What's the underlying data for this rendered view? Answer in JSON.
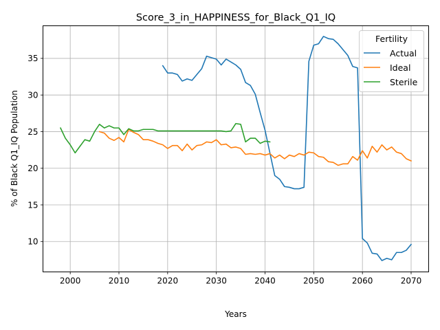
{
  "chart_data": {
    "type": "line",
    "title": "Score_3_in_HAPPINESS_for_Black_Q1_IQ",
    "xlabel": "Years",
    "ylabel": "% of Black Q1_IQ Population",
    "xlim": [
      1994.4,
      2073.6
    ],
    "ylim": [
      5.85,
      39.45
    ],
    "xticks": [
      2000,
      2010,
      2020,
      2030,
      2040,
      2050,
      2060,
      2070
    ],
    "yticks": [
      10,
      15,
      20,
      25,
      30,
      35
    ],
    "grid": true,
    "legend": {
      "title": "Fertility",
      "placement": "top-right",
      "entries": [
        "Actual",
        "Ideal",
        "Sterile"
      ]
    },
    "series": [
      {
        "name": "Actual",
        "color": "#1f77b4",
        "x": [
          2019,
          2020,
          2021,
          2022,
          2023,
          2024,
          2025,
          2026,
          2027,
          2028,
          2029,
          2030,
          2031,
          2032,
          2033,
          2034,
          2035,
          2036,
          2037,
          2038,
          2039,
          2040,
          2041,
          2042,
          2043,
          2044,
          2045,
          2046,
          2047,
          2048,
          2049,
          2050,
          2051,
          2052,
          2053,
          2054,
          2055,
          2056,
          2057,
          2058,
          2059,
          2060,
          2061,
          2062,
          2063,
          2064,
          2065,
          2066,
          2067,
          2068,
          2069,
          2070
        ],
        "y": [
          34.0,
          33.0,
          33.0,
          32.8,
          31.9,
          32.2,
          32.0,
          32.8,
          33.6,
          35.3,
          35.1,
          34.9,
          34.1,
          34.9,
          34.5,
          34.1,
          33.5,
          31.7,
          31.3,
          30.1,
          27.6,
          25.2,
          22.1,
          19.0,
          18.5,
          17.5,
          17.4,
          17.2,
          17.2,
          17.4,
          34.6,
          36.8,
          37.0,
          38.0,
          37.7,
          37.6,
          37.0,
          36.2,
          35.4,
          33.9,
          33.7,
          10.4,
          9.8,
          8.4,
          8.3,
          7.4,
          7.7,
          7.5,
          8.5,
          8.5,
          8.8,
          9.6
        ]
      },
      {
        "name": "Ideal",
        "color": "#ff7f0e",
        "x": [
          2006,
          2007,
          2008,
          2009,
          2010,
          2011,
          2012,
          2013,
          2014,
          2015,
          2016,
          2017,
          2018,
          2019,
          2020,
          2021,
          2022,
          2023,
          2024,
          2025,
          2026,
          2027,
          2028,
          2029,
          2030,
          2031,
          2032,
          2033,
          2034,
          2035,
          2036,
          2037,
          2038,
          2039,
          2040,
          2041,
          2042,
          2043,
          2044,
          2045,
          2046,
          2047,
          2048,
          2049,
          2050,
          2051,
          2052,
          2053,
          2054,
          2055,
          2056,
          2057,
          2058,
          2059,
          2060,
          2061,
          2062,
          2063,
          2064,
          2065,
          2066,
          2067,
          2068,
          2069,
          2070
        ],
        "y": [
          25.0,
          24.8,
          24.1,
          23.8,
          24.2,
          23.6,
          25.3,
          24.9,
          24.6,
          23.9,
          23.9,
          23.7,
          23.4,
          23.2,
          22.7,
          23.1,
          23.1,
          22.4,
          23.3,
          22.5,
          23.1,
          23.2,
          23.6,
          23.5,
          23.9,
          23.2,
          23.3,
          22.8,
          22.9,
          22.7,
          21.9,
          22.0,
          21.9,
          22.0,
          21.8,
          22.0,
          21.4,
          21.8,
          21.3,
          21.8,
          21.6,
          22.0,
          21.8,
          22.2,
          22.1,
          21.6,
          21.5,
          20.9,
          20.8,
          20.4,
          20.6,
          20.6,
          21.6,
          21.1,
          22.4,
          21.4,
          23.0,
          22.2,
          23.2,
          22.5,
          22.9,
          22.2,
          22.0,
          21.3,
          21.0
        ]
      },
      {
        "name": "Sterile",
        "color": "#2ca02c",
        "x": [
          1998,
          1999,
          2000,
          2001,
          2002,
          2003,
          2004,
          2005,
          2006,
          2007,
          2008,
          2009,
          2010,
          2011,
          2012,
          2013,
          2014,
          2015,
          2016,
          2017,
          2018,
          2019,
          2020,
          2021,
          2022,
          2023,
          2024,
          2025,
          2026,
          2027,
          2028,
          2029,
          2030,
          2031,
          2032,
          2033,
          2034,
          2035,
          2036,
          2037,
          2038,
          2039,
          2040,
          2041
        ],
        "y": [
          25.5,
          24.1,
          23.2,
          22.1,
          23.0,
          23.9,
          23.7,
          25.0,
          26.0,
          25.5,
          25.8,
          25.5,
          25.5,
          24.6,
          25.4,
          25.1,
          25.1,
          25.3,
          25.3,
          25.3,
          25.1,
          25.1,
          25.1,
          25.1,
          25.1,
          25.1,
          25.1,
          25.1,
          25.1,
          25.1,
          25.1,
          25.1,
          25.1,
          25.1,
          25.0,
          25.1,
          26.1,
          26.0,
          23.6,
          24.1,
          24.1,
          23.4,
          23.7,
          23.6
        ]
      }
    ]
  }
}
